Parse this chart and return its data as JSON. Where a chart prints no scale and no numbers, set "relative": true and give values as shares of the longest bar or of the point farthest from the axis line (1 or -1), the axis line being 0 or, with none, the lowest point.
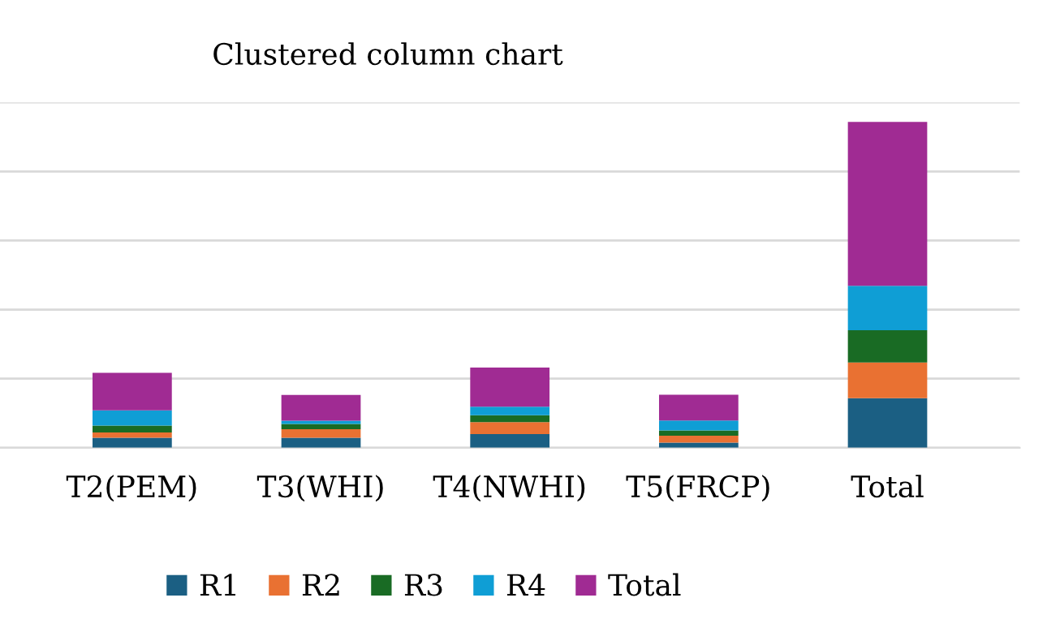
{
  "chart_data": {
    "type": "bar",
    "title": "Clustered column chart",
    "categories": [
      "T2(PEM)",
      "T3(WHI)",
      "T4(NWHI)",
      "T5(FRCP)",
      "Total"
    ],
    "stacked": true,
    "relative": true,
    "grid": "y",
    "legend": "bottom",
    "series": [
      {
        "name": "R1",
        "color": "#1b5f83",
        "values": [
          0.031,
          0.031,
          0.042,
          0.016,
          0.152
        ]
      },
      {
        "name": "R2",
        "color": "#e97132",
        "values": [
          0.016,
          0.026,
          0.037,
          0.021,
          0.11
        ]
      },
      {
        "name": "R3",
        "color": "#196b24",
        "values": [
          0.021,
          0.016,
          0.021,
          0.016,
          0.099
        ]
      },
      {
        "name": "R4",
        "color": "#0f9ed5",
        "values": [
          0.047,
          0.01,
          0.026,
          0.031,
          0.136
        ]
      },
      {
        "name": "Total",
        "color": "#a02b93",
        "values": [
          0.115,
          0.079,
          0.12,
          0.079,
          0.503
        ]
      }
    ]
  }
}
